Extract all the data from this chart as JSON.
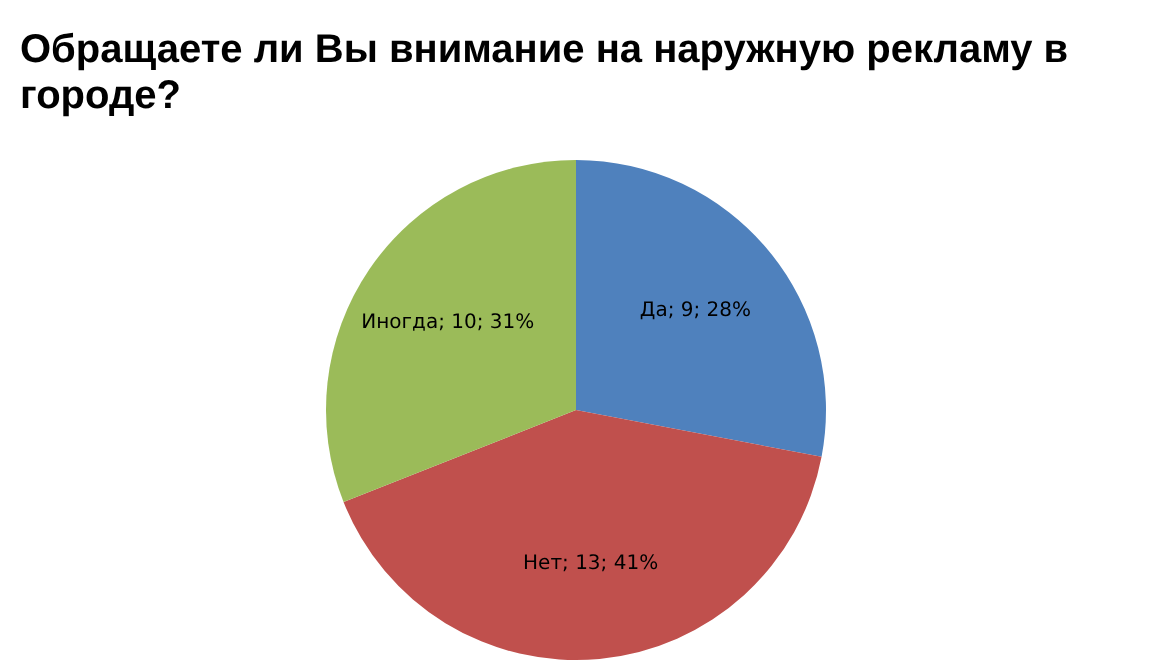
{
  "chart_data": {
    "type": "pie",
    "title": "Обращаете ли Вы внимание на наружную рекламу в городе?",
    "categories": [
      "Да",
      "Нет",
      "Иногда"
    ],
    "values": [
      28,
      41,
      31
    ],
    "colors": [
      "#4f81bd",
      "#c0504d",
      "#9bbb59"
    ],
    "value_labels": [
      "; 9; 28%",
      "; 13; 41%",
      "; 10; 31%"
    ],
    "legend": false
  }
}
